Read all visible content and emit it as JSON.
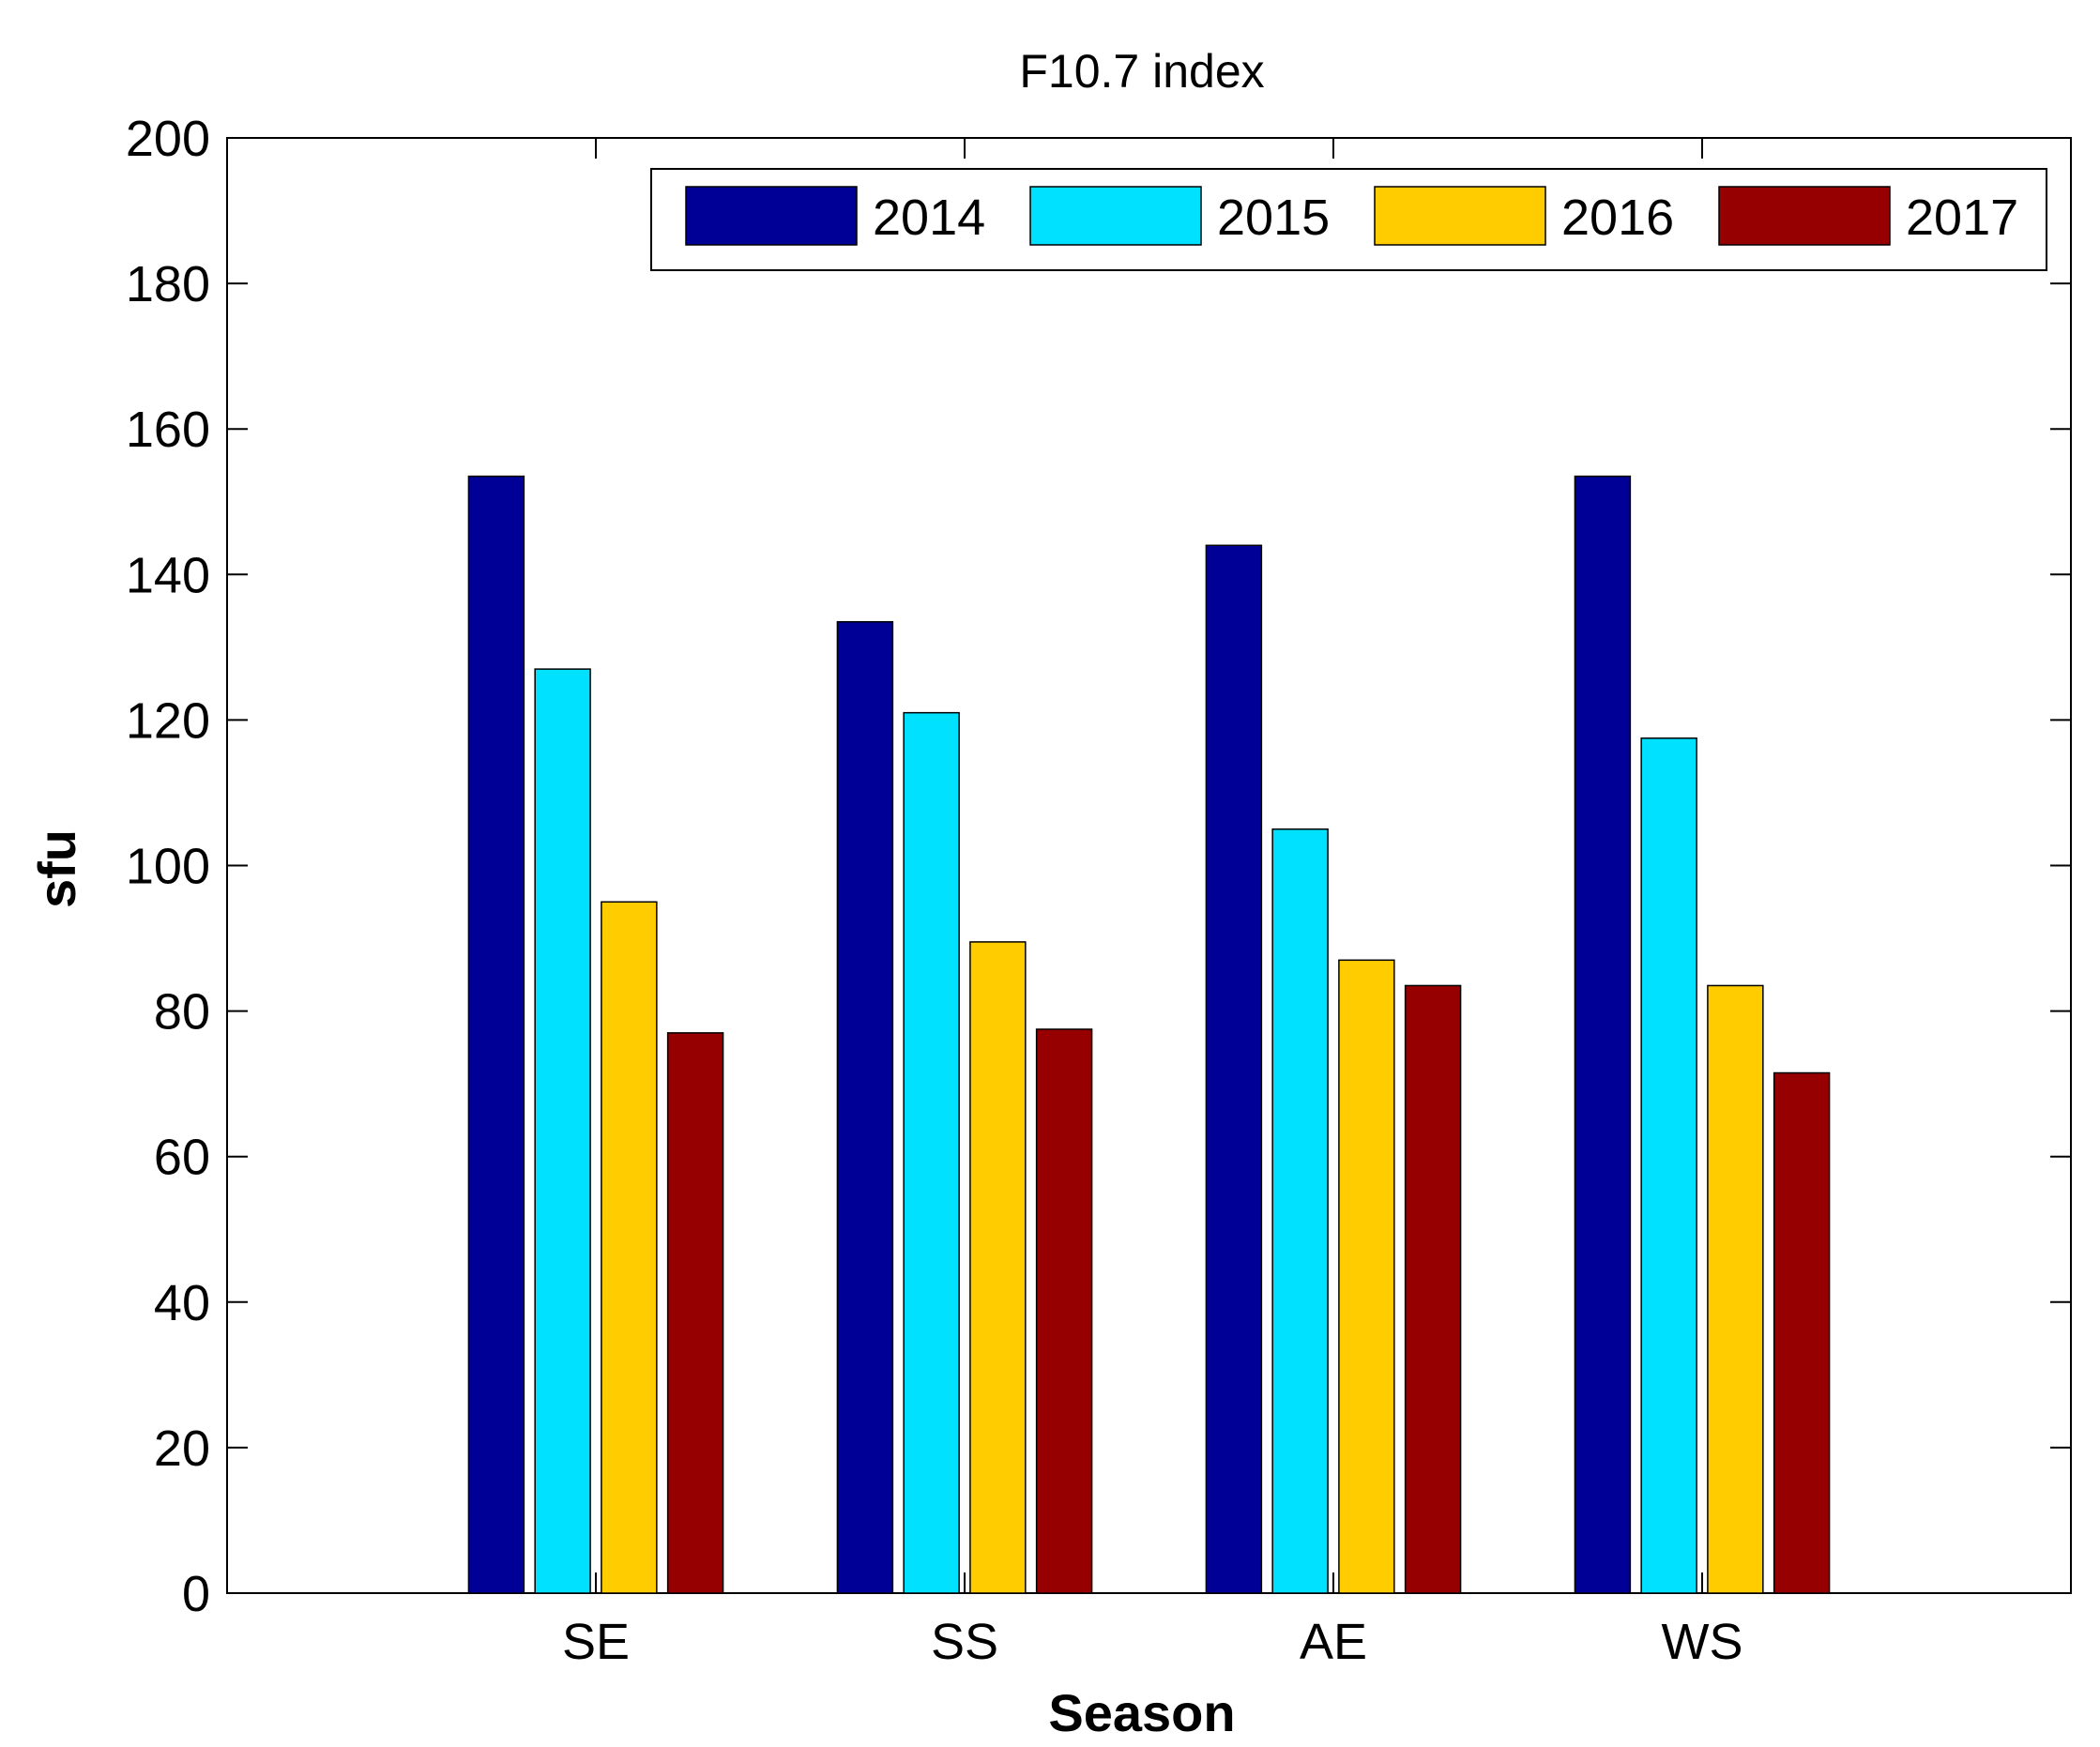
{
  "chart_data": {
    "type": "bar",
    "title": "F10.7 index",
    "xlabel": "Season",
    "ylabel": "sfu",
    "categories": [
      "SE",
      "SS",
      "AE",
      "WS"
    ],
    "series": [
      {
        "name": "2014",
        "color": "#000096",
        "values": [
          153.5,
          133.5,
          144,
          153.5
        ]
      },
      {
        "name": "2015",
        "color": "#00E0FF",
        "values": [
          127,
          121,
          105,
          117.5
        ]
      },
      {
        "name": "2016",
        "color": "#FFCC00",
        "values": [
          95,
          89.5,
          87,
          83.5
        ]
      },
      {
        "name": "2017",
        "color": "#960000",
        "values": [
          77,
          77.5,
          83.5,
          71.5
        ]
      }
    ],
    "xlim": [
      0.5,
      5.5
    ],
    "ylim": [
      0,
      200
    ],
    "yticks": [
      0,
      20,
      40,
      60,
      80,
      100,
      120,
      140,
      160,
      180,
      200
    ],
    "grid": false,
    "legend": {
      "placement": "top-right",
      "orientation": "horizontal"
    }
  }
}
